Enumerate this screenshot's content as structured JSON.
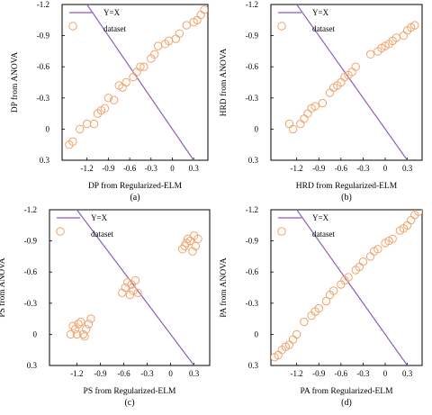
{
  "chart_data": [
    {
      "type": "scatter",
      "panel_label": "(a)",
      "xlabel": "DP from Regularized-ELM",
      "ylabel": "DP from ANOVA",
      "xticks": [
        "-1.2",
        "-0.9",
        "-0.6",
        "-0.3",
        "0",
        "0.3"
      ],
      "yticks": [
        "-1.2",
        "-0.9",
        "-0.6",
        "-0.3",
        "0",
        "0.3"
      ],
      "xlim": [
        -1.55,
        0.5
      ],
      "ylim": [
        -1.2,
        0.3
      ],
      "y_axis_inverted": true,
      "grid": false,
      "legend_position": "top-left",
      "series": [
        {
          "name": "Y=X",
          "kind": "line",
          "color": "#8c5cc0",
          "x": [
            -1.55,
            0.5
          ],
          "y": [
            -1.55,
            0.5
          ]
        },
        {
          "name": "dataset",
          "kind": "scatter",
          "color": "#f2a36b",
          "x": [
            -1.45,
            -1.4,
            -1.3,
            -1.2,
            -1.1,
            -1.05,
            -1.0,
            -0.95,
            -0.9,
            -0.82,
            -0.75,
            -0.7,
            -0.65,
            -0.55,
            -0.5,
            -0.45,
            -0.4,
            -0.3,
            -0.25,
            -0.2,
            -0.1,
            -0.05,
            0.05,
            0.1,
            0.2,
            0.3,
            0.35,
            0.4,
            0.45
          ],
          "y": [
            0.15,
            0.12,
            0.0,
            -0.05,
            -0.05,
            -0.15,
            -0.18,
            -0.2,
            -0.3,
            -0.28,
            -0.42,
            -0.4,
            -0.45,
            -0.5,
            -0.55,
            -0.6,
            -0.6,
            -0.68,
            -0.72,
            -0.8,
            -0.82,
            -0.85,
            -0.87,
            -0.92,
            -1.0,
            -1.03,
            -1.05,
            -1.1,
            -1.15
          ]
        }
      ]
    },
    {
      "type": "scatter",
      "panel_label": "(b)",
      "xlabel": "HRD from Regularized-ELM",
      "ylabel": "HRD from ANOVA",
      "xticks": [
        "-1.2",
        "-0.9",
        "-0.6",
        "-0.3",
        "0",
        "0.3"
      ],
      "yticks": [
        "-1.2",
        "-0.9",
        "-0.6",
        "-0.3",
        "0",
        "0.3"
      ],
      "xlim": [
        -1.55,
        0.5
      ],
      "ylim": [
        -1.2,
        0.3
      ],
      "y_axis_inverted": true,
      "grid": false,
      "legend_position": "top-left",
      "series": [
        {
          "name": "Y=X",
          "kind": "line",
          "color": "#8c5cc0",
          "x": [
            -1.55,
            0.5
          ],
          "y": [
            -1.55,
            0.5
          ]
        },
        {
          "name": "dataset",
          "kind": "scatter",
          "color": "#f2a36b",
          "x": [
            -1.3,
            -1.25,
            -1.15,
            -1.1,
            -1.05,
            -1.0,
            -0.95,
            -0.85,
            -0.75,
            -0.7,
            -0.65,
            -0.6,
            -0.55,
            -0.5,
            -0.45,
            -0.4,
            -0.2,
            -0.1,
            -0.05,
            0.0,
            0.05,
            0.1,
            0.15,
            0.25,
            0.3,
            0.35,
            0.4
          ],
          "y": [
            -0.05,
            0.0,
            -0.05,
            -0.1,
            -0.15,
            -0.2,
            -0.22,
            -0.25,
            -0.35,
            -0.4,
            -0.42,
            -0.45,
            -0.5,
            -0.52,
            -0.55,
            -0.6,
            -0.72,
            -0.75,
            -0.78,
            -0.8,
            -0.82,
            -0.85,
            -0.88,
            -0.9,
            -0.95,
            -0.98,
            -1.0
          ]
        }
      ]
    },
    {
      "type": "scatter",
      "panel_label": "(c)",
      "xlabel": "PS from Regularized-ELM",
      "ylabel": "PS from ANOVA",
      "xticks": [
        "-1.2",
        "-0.9",
        "-0.6",
        "-0.3",
        "0",
        "0.3"
      ],
      "yticks": [
        "-1.2",
        "-0.9",
        "-0.6",
        "-0.3",
        "0",
        "0.3"
      ],
      "xlim": [
        -1.55,
        0.5
      ],
      "ylim": [
        -1.2,
        0.3
      ],
      "y_axis_inverted": true,
      "grid": false,
      "legend_position": "top-left",
      "series": [
        {
          "name": "Y=X",
          "kind": "line",
          "color": "#8c5cc0",
          "x": [
            -1.55,
            0.5
          ],
          "y": [
            -1.55,
            0.5
          ]
        },
        {
          "name": "dataset",
          "kind": "scatter",
          "color": "#f2a36b",
          "x": [
            -1.28,
            -1.25,
            -1.22,
            -1.2,
            -1.18,
            -1.15,
            -1.12,
            -1.1,
            -1.08,
            -1.05,
            -1.02,
            -0.62,
            -0.58,
            -0.55,
            -0.52,
            -0.5,
            -0.48,
            -0.45,
            -0.42,
            0.15,
            0.18,
            0.2,
            0.22,
            0.25,
            0.28,
            0.3,
            0.32,
            0.35
          ],
          "y": [
            0.0,
            -0.08,
            -0.05,
            0.0,
            -0.1,
            -0.12,
            0.0,
            0.02,
            -0.05,
            -0.1,
            -0.15,
            -0.4,
            -0.45,
            -0.5,
            -0.38,
            -0.48,
            -0.42,
            -0.52,
            -0.4,
            -0.82,
            -0.85,
            -0.88,
            -0.92,
            -0.9,
            -0.8,
            -0.95,
            -0.85,
            -0.92
          ]
        }
      ]
    },
    {
      "type": "scatter",
      "panel_label": "(d)",
      "xlabel": "PA from Regularized-ELM",
      "ylabel": "PA from ANOVA",
      "xticks": [
        "-1.2",
        "-0.9",
        "-0.6",
        "-0.3",
        "0",
        "0.3"
      ],
      "yticks": [
        "-1.2",
        "-0.9",
        "-0.6",
        "-0.3",
        "0",
        "0.3"
      ],
      "xlim": [
        -1.55,
        0.5
      ],
      "ylim": [
        -1.2,
        0.3
      ],
      "y_axis_inverted": true,
      "grid": false,
      "legend_position": "top-left",
      "series": [
        {
          "name": "Y=X",
          "kind": "line",
          "color": "#8c5cc0",
          "x": [
            -1.55,
            0.5
          ],
          "y": [
            -1.55,
            0.5
          ]
        },
        {
          "name": "dataset",
          "kind": "scatter",
          "color": "#f2a36b",
          "x": [
            -1.5,
            -1.45,
            -1.4,
            -1.35,
            -1.3,
            -1.25,
            -1.2,
            -1.1,
            -1.0,
            -0.95,
            -0.9,
            -0.8,
            -0.75,
            -0.7,
            -0.6,
            -0.55,
            -0.5,
            -0.4,
            -0.35,
            -0.3,
            -0.2,
            -0.15,
            -0.1,
            0.0,
            0.05,
            0.1,
            0.2,
            0.25,
            0.3,
            0.35,
            0.4,
            0.45
          ],
          "y": [
            0.22,
            0.2,
            0.15,
            0.12,
            0.1,
            0.05,
            0.0,
            -0.12,
            -0.18,
            -0.22,
            -0.25,
            -0.32,
            -0.38,
            -0.42,
            -0.48,
            -0.52,
            -0.55,
            -0.62,
            -0.65,
            -0.7,
            -0.75,
            -0.8,
            -0.82,
            -0.88,
            -0.9,
            -0.92,
            -1.0,
            -1.02,
            -1.05,
            -1.1,
            -1.15,
            -1.18
          ]
        }
      ]
    }
  ]
}
